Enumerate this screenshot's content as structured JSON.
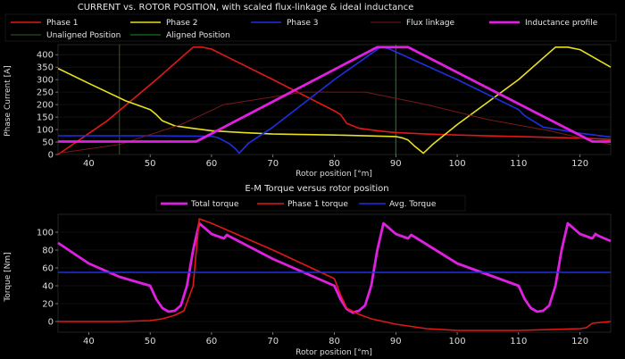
{
  "chart_data": [
    {
      "type": "line",
      "title": "CURRENT vs. ROTOR POSITION, with scaled flux-linkage & ideal inductance",
      "xlabel": "Rotor position [°m]",
      "ylabel": "Phase Current [A]",
      "xlim": [
        35,
        125
      ],
      "ylim": [
        0,
        440
      ],
      "xticks": [
        "40",
        "50",
        "60",
        "70",
        "80",
        "90",
        "100",
        "110",
        "120"
      ],
      "yticks": [
        "0",
        "50",
        "100",
        "150",
        "200",
        "250",
        "300",
        "350",
        "400"
      ],
      "legend": [
        "Phase 1",
        "Phase 2",
        "Phase 3",
        "Flux linkage",
        "Inductance profile",
        "Unaligned Position",
        "Aligned Position"
      ],
      "colors": {
        "phase1": "#e01818",
        "phase2": "#e8e020",
        "phase3": "#1f2fe0",
        "flux": "#7a1818",
        "inductance": "#e020e0",
        "unaligned": "#3a5a20",
        "aligned": "#1f8a1f"
      },
      "vlines": {
        "unaligned": 45,
        "aligned": 90
      },
      "series": [
        {
          "name": "Phase 1",
          "color": "#e01818",
          "width": 1.6,
          "x": [
            35,
            43,
            51,
            57,
            58.5,
            60,
            70,
            80,
            81,
            82,
            84,
            87,
            90,
            95,
            100,
            110,
            120,
            125
          ],
          "y": [
            0,
            135,
            300,
            430,
            430,
            422,
            300,
            175,
            160,
            125,
            105,
            95,
            88,
            82,
            78,
            72,
            66,
            60
          ]
        },
        {
          "name": "Phase 2",
          "color": "#e8e020",
          "width": 1.6,
          "x": [
            35,
            40,
            46,
            50,
            51,
            52,
            54,
            56,
            60,
            65,
            70,
            80,
            90,
            91,
            92,
            93,
            94.5,
            96,
            100,
            110,
            116,
            118,
            120,
            125
          ],
          "y": [
            345,
            285,
            215,
            180,
            160,
            135,
            115,
            108,
            95,
            88,
            82,
            78,
            72,
            67,
            58,
            35,
            5,
            40,
            120,
            300,
            430,
            430,
            420,
            350
          ]
        },
        {
          "name": "Phase 3",
          "color": "#1f2fe0",
          "width": 1.6,
          "x": [
            35,
            50,
            60,
            61,
            62,
            63,
            64,
            64.5,
            66,
            70,
            80,
            87.5,
            88,
            89,
            100,
            110,
            111,
            114,
            120,
            125
          ],
          "y": [
            75,
            75,
            73,
            68,
            55,
            42,
            20,
            5,
            45,
            110,
            300,
            430,
            430,
            422,
            300,
            180,
            155,
            110,
            85,
            70
          ]
        },
        {
          "name": "Flux linkage",
          "color": "#7a1818",
          "width": 1,
          "x": [
            35,
            45,
            55,
            62,
            75,
            85,
            95,
            105,
            115,
            125
          ],
          "y": [
            5,
            40,
            120,
            200,
            250,
            250,
            200,
            140,
            95,
            40
          ]
        },
        {
          "name": "Inductance profile",
          "color": "#e020e0",
          "width": 2.8,
          "x": [
            35,
            57.5,
            87,
            92,
            122,
            125
          ],
          "y": [
            52,
            52,
            430,
            430,
            52,
            52
          ]
        }
      ]
    },
    {
      "type": "line",
      "title": "E-M Torque versus rotor position",
      "xlabel": "Rotor position [°m]",
      "ylabel": "Torque [Nm]",
      "xlim": [
        35,
        125
      ],
      "ylim": [
        -12,
        120
      ],
      "xticks": [
        "40",
        "50",
        "60",
        "70",
        "80",
        "90",
        "100",
        "110",
        "120"
      ],
      "yticks": [
        "0",
        "20",
        "40",
        "60",
        "80",
        "100"
      ],
      "legend": [
        "Total torque",
        "Phase 1 torque",
        "Avg. Torque"
      ],
      "colors": {
        "total": "#e020e0",
        "phase1": "#e01818",
        "avg": "#1f2fe0"
      },
      "series": [
        {
          "name": "Total torque",
          "color": "#e020e0",
          "width": 2.8,
          "x": [
            35,
            40,
            45,
            50,
            51,
            52,
            53,
            54,
            55,
            56,
            57,
            58,
            60,
            62,
            62.5,
            63,
            70,
            80,
            81,
            82,
            83,
            84,
            85,
            86,
            87,
            88,
            90,
            92,
            92.5,
            93,
            100,
            110,
            111,
            112,
            113,
            114,
            115,
            116,
            117,
            118,
            120,
            122,
            122.5,
            123,
            125
          ],
          "y": [
            88,
            65,
            50,
            40,
            25,
            15,
            11,
            12,
            18,
            40,
            80,
            110,
            98,
            93,
            97,
            95,
            70,
            40,
            25,
            14,
            10,
            12,
            18,
            40,
            80,
            110,
            98,
            93,
            97,
            95,
            65,
            40,
            25,
            15,
            11,
            12,
            18,
            40,
            80,
            110,
            98,
            93,
            98,
            96,
            90
          ]
        },
        {
          "name": "Phase 1 torque",
          "color": "#e01818",
          "width": 1.6,
          "x": [
            35,
            40,
            45,
            50,
            52,
            54,
            55.5,
            57,
            58,
            60,
            70,
            80,
            81,
            82,
            84,
            86,
            90,
            95,
            100,
            110,
            120,
            121,
            122,
            125
          ],
          "y": [
            0,
            0,
            0,
            1,
            3,
            7,
            12,
            40,
            115,
            110,
            80,
            48,
            30,
            15,
            8,
            3,
            -3,
            -8,
            -10,
            -10,
            -8,
            -7,
            -2,
            0
          ]
        },
        {
          "name": "Avg. Torque",
          "color": "#1f2fe0",
          "width": 1.6,
          "x": [
            35,
            125
          ],
          "y": [
            55,
            55
          ]
        }
      ]
    }
  ]
}
